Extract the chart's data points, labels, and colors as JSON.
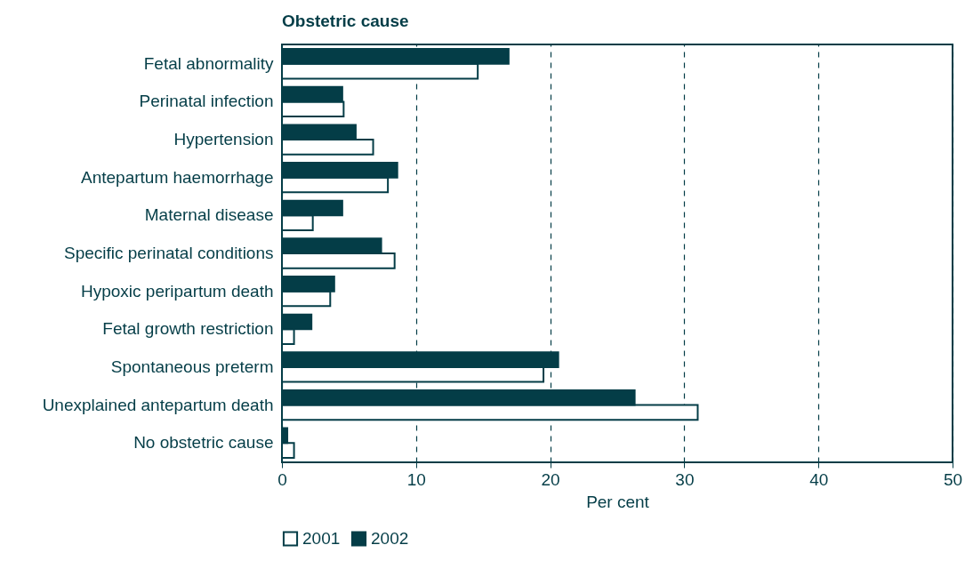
{
  "chart_data": {
    "type": "bar",
    "orientation": "horizontal",
    "title": "Obstetric cause",
    "xlabel": "Per cent",
    "categories": [
      "Fetal abnormality",
      "Perinatal infection",
      "Hypertension",
      "Antepartum haemorrhage",
      "Maternal disease",
      "Specific perinatal conditions",
      "Hypoxic peripartum death",
      "Fetal growth restriction",
      "Spontaneous preterm",
      "Unexplained antepartum death",
      "No obstetric cause"
    ],
    "series": [
      {
        "name": "2001",
        "color": "#ffffff",
        "values": [
          14.6,
          4.6,
          6.8,
          7.9,
          2.3,
          8.4,
          3.6,
          0.9,
          19.5,
          31.0,
          0.9
        ]
      },
      {
        "name": "2002",
        "color": "#043d47",
        "values": [
          16.9,
          4.5,
          5.5,
          8.6,
          4.5,
          7.4,
          3.9,
          2.2,
          20.6,
          26.3,
          0.4
        ]
      }
    ],
    "xlim": [
      0,
      50
    ],
    "xticks": [
      0,
      10,
      20,
      30,
      40,
      50
    ],
    "grid": "x",
    "legend": "bottom"
  }
}
